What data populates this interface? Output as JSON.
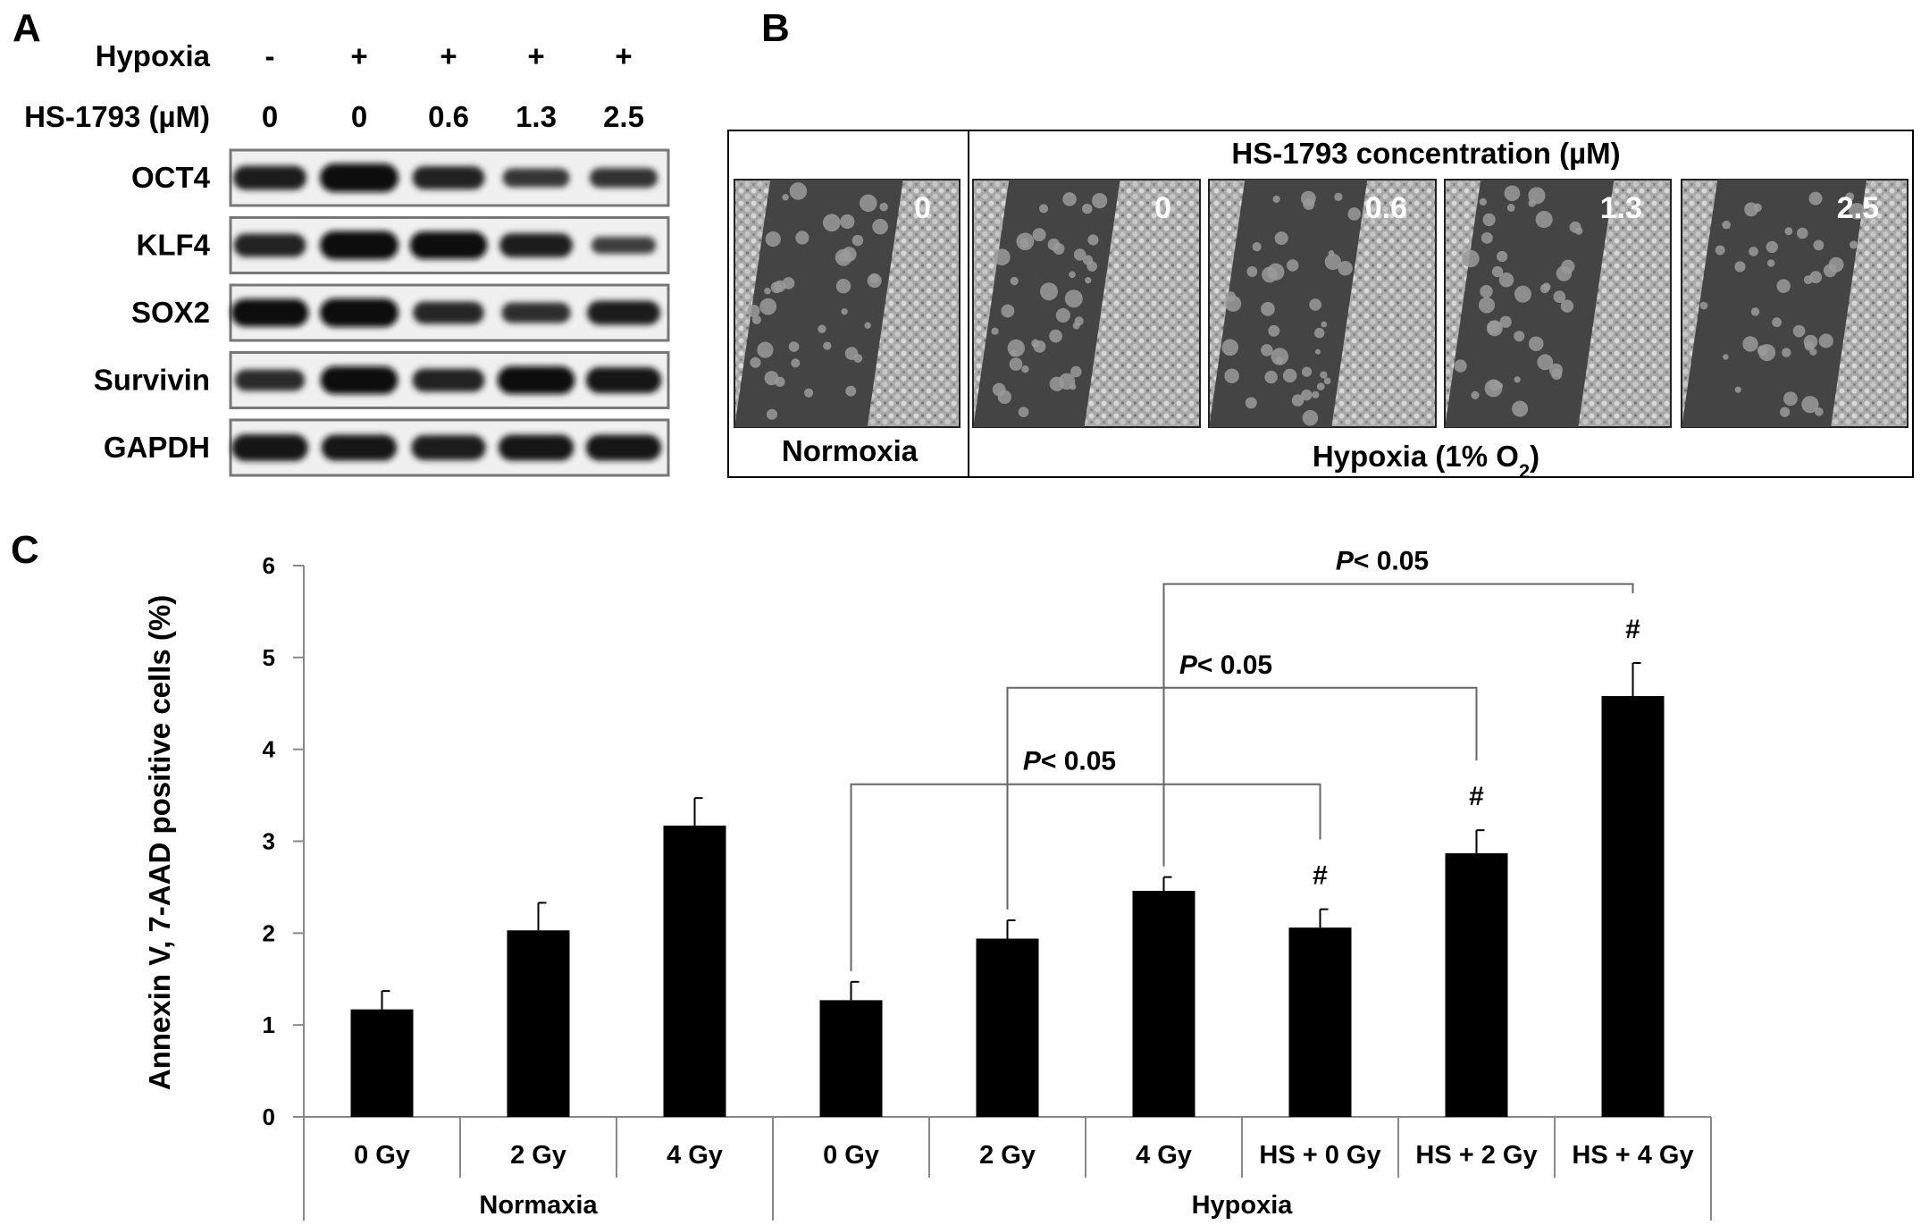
{
  "panel_a": {
    "letter": "A",
    "conditions": [
      {
        "label": "Hypoxia",
        "values": [
          "-",
          "+",
          "+",
          "+",
          "+"
        ]
      },
      {
        "label": "HS-1793 (µM)",
        "values": [
          "0",
          "0",
          "0.6",
          "1.3",
          "2.5"
        ]
      }
    ],
    "blots": [
      {
        "label": "OCT4",
        "intensities": [
          0.75,
          1.0,
          0.7,
          0.45,
          0.5
        ]
      },
      {
        "label": "KLF4",
        "intensities": [
          0.7,
          1.0,
          0.95,
          0.75,
          0.35
        ]
      },
      {
        "label": "SOX2",
        "intensities": [
          0.95,
          1.0,
          0.65,
          0.55,
          0.75
        ]
      },
      {
        "label": "Survivin",
        "intensities": [
          0.6,
          0.95,
          0.7,
          0.95,
          0.85
        ]
      },
      {
        "label": "GAPDH",
        "intensities": [
          0.9,
          0.85,
          0.8,
          0.85,
          0.85
        ]
      }
    ]
  },
  "panel_b": {
    "letter": "B",
    "header": "HS-1793 concentration (µM)",
    "normoxia_label": "Normoxia",
    "hypoxia_label_main": "Hypoxia (1% O",
    "hypoxia_label_sub": "2",
    "hypoxia_label_end": ")",
    "images": [
      {
        "label": "0",
        "condition": "Normoxia",
        "gap_fraction": 0.55
      },
      {
        "label": "0",
        "condition": "Hypoxia",
        "gap_fraction": 0.45
      },
      {
        "label": "0.6",
        "condition": "Hypoxia",
        "gap_fraction": 0.5
      },
      {
        "label": "1.3",
        "condition": "Hypoxia",
        "gap_fraction": 0.55
      },
      {
        "label": "2.5",
        "condition": "Hypoxia",
        "gap_fraction": 0.62
      }
    ]
  },
  "panel_c": {
    "letter": "C",
    "chart_data": {
      "type": "bar",
      "ylabel": "Annexin V, 7-AAD positive cells (%)",
      "ylim": [
        0,
        6
      ],
      "yticks": [
        0,
        1,
        2,
        3,
        4,
        5,
        6
      ],
      "categories": [
        "0 Gy",
        "2 Gy",
        "4 Gy",
        "0 Gy",
        "2 Gy",
        "4 Gy",
        "HS + 0 Gy",
        "HS + 2 Gy",
        "HS + 4 Gy"
      ],
      "groups": [
        {
          "label": "Normaxia",
          "count": 3
        },
        {
          "label": "Hypoxia",
          "count": 6
        }
      ],
      "values": [
        1.17,
        2.03,
        3.17,
        1.27,
        1.94,
        2.46,
        2.06,
        2.87,
        4.58
      ],
      "errors": [
        0.2,
        0.3,
        0.3,
        0.2,
        0.2,
        0.15,
        0.2,
        0.25,
        0.36
      ],
      "markers": [
        "",
        "",
        "",
        "",
        "",
        "",
        "#",
        "#",
        "#"
      ],
      "grid": false,
      "legend": "none",
      "bar_color": "#000000",
      "comparisons": [
        {
          "from": 3,
          "to": 6,
          "label_italic": "P",
          "label_rest": "< 0.05",
          "line_y": 3.62
        },
        {
          "from": 4,
          "to": 7,
          "label_italic": "P",
          "label_rest": "< 0.05",
          "line_y": 4.67
        },
        {
          "from": 5,
          "to": 8,
          "label_italic": "P",
          "label_rest": "< 0.05",
          "line_y": 5.8
        }
      ]
    }
  }
}
